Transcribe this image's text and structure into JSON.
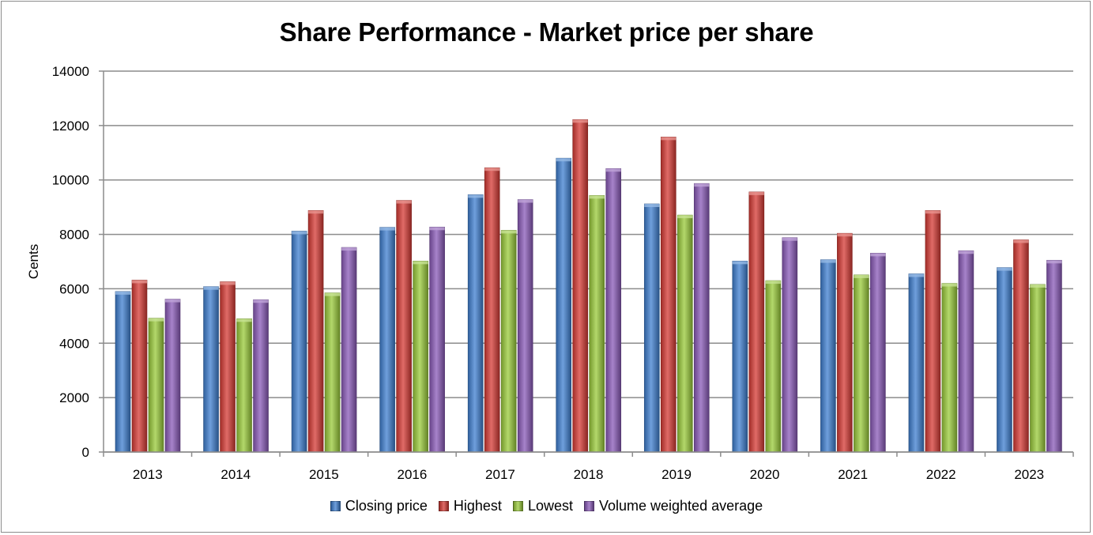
{
  "chart_data": {
    "type": "bar",
    "title": "Share Performance - Market price per share",
    "xlabel": "",
    "ylabel": "Cents",
    "ylim": [
      0,
      14000
    ],
    "yticks": [
      0,
      2000,
      4000,
      6000,
      8000,
      10000,
      12000,
      14000
    ],
    "grid": true,
    "legend_position": "bottom",
    "categories": [
      "2013",
      "2014",
      "2015",
      "2016",
      "2017",
      "2018",
      "2019",
      "2020",
      "2021",
      "2022",
      "2023"
    ],
    "series": [
      {
        "name": "Closing price",
        "color": "#3f7fd0",
        "values": [
          5900,
          6080,
          8120,
          8260,
          9460,
          10800,
          9120,
          7020,
          7070,
          6550,
          6780
        ]
      },
      {
        "name": "Highest",
        "color": "#d63a34",
        "values": [
          6320,
          6260,
          8880,
          9250,
          10450,
          12220,
          11580,
          9560,
          8040,
          8880,
          7800
        ]
      },
      {
        "name": "Lowest",
        "color": "#9acb3a",
        "values": [
          4920,
          4900,
          5850,
          7020,
          8150,
          9430,
          8710,
          6300,
          6510,
          6200,
          6160
        ]
      },
      {
        "name": "Volume weighted average",
        "color": "#8a5ab8",
        "values": [
          5620,
          5600,
          7520,
          8270,
          9280,
          10420,
          9870,
          7880,
          7310,
          7400,
          7050
        ]
      }
    ]
  }
}
